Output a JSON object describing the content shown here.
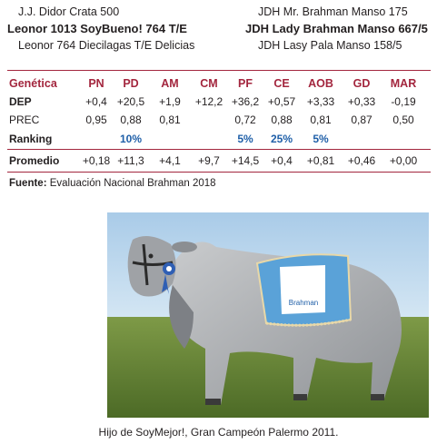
{
  "pedigree": {
    "left": [
      "J.J. Didor Crata 500",
      "Leonor 1013 SoyBueno! 764 T/E",
      "Leonor 764 Diecilagas T/E Delicias"
    ],
    "right": [
      "JDH Mr. Brahman Manso 175",
      "JDH Lady Brahman Manso 667/5",
      "JDH Lasy Pala Manso 158/5"
    ]
  },
  "table": {
    "header_label": "Genética",
    "columns": [
      "PN",
      "PD",
      "AM",
      "CM",
      "PF",
      "CE",
      "AOB",
      "GD",
      "MAR"
    ],
    "rows": [
      {
        "label": "DEP",
        "values": [
          "+0,4",
          "+20,5",
          "+1,9",
          "+12,2",
          "+36,2",
          "+0,57",
          "+3,33",
          "+0,33",
          "-0,19"
        ]
      },
      {
        "label": "PREC",
        "values": [
          "0,95",
          "0,88",
          "0,81",
          "",
          "0,72",
          "0,88",
          "0,81",
          "0,87",
          "0,50"
        ]
      },
      {
        "label": "Ranking",
        "values": [
          "",
          "10%",
          "",
          "",
          "5%",
          "25%",
          "5%",
          "",
          ""
        ]
      },
      {
        "label": "Promedio",
        "values": [
          "+0,18",
          "+11,3",
          "+4,1",
          "+9,7",
          "+14,5",
          "+0,4",
          "+0,81",
          "+0,46",
          "+0,00"
        ]
      }
    ]
  },
  "source": {
    "label": "Fuente:",
    "text": "Evaluación Nacional Brahman 2018"
  },
  "photo": {
    "blanket_text": "Brahman"
  },
  "caption": "Hijo de SoyMejor!, Gran Campeón Palermo 2011.",
  "colors": {
    "accent": "#a3263e",
    "highlight": "#1f5fa8",
    "sky": "#bcd8ee",
    "grass": "#5f7a34",
    "blanket": "#5aa2d8"
  }
}
